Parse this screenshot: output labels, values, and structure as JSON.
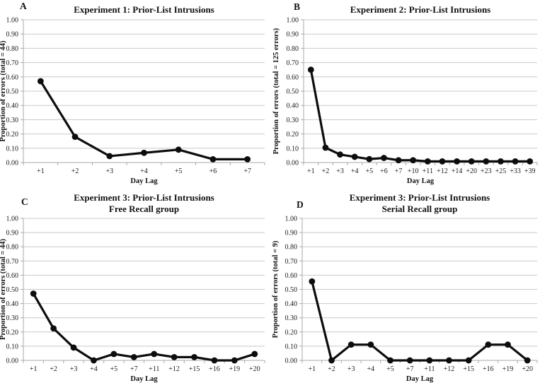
{
  "figure": {
    "background": "#ffffff",
    "series_color": "#0d0d0d",
    "gridline_color": "#c9c9c9",
    "axis_color": "#a9a9a9",
    "text_color": "#1b1b1b"
  },
  "chart_data": [
    {
      "type": "line",
      "panel_label": "A",
      "title": "Experiment 1: Prior-List Intrusions",
      "subtitle": "",
      "xlabel": "Day Lag",
      "ylabel": "Proportion of errors (total = 44)",
      "ylim": [
        0,
        1
      ],
      "yticks": [
        "0.00",
        "0.10",
        "0.20",
        "0.30",
        "0.40",
        "0.50",
        "0.60",
        "0.70",
        "0.80",
        "0.90",
        "1.00"
      ],
      "grid": true,
      "legend": "none",
      "marker": "filled-circle",
      "categories": [
        "+1",
        "+2",
        "+3",
        "+4",
        "+5",
        "+6",
        "+7"
      ],
      "values": [
        0.57,
        0.18,
        0.045,
        0.068,
        0.09,
        0.023,
        0.023
      ]
    },
    {
      "type": "line",
      "panel_label": "B",
      "title": "Experiment 2: Prior-List Intrusions",
      "subtitle": "",
      "xlabel": "Day Lag",
      "ylabel": "Proportion of errors (total = 125 errors)",
      "ylim": [
        0,
        1
      ],
      "yticks": [
        "0.00",
        "0.10",
        "0.20",
        "0.30",
        "0.40",
        "0.50",
        "0.60",
        "0.70",
        "0.80",
        "0.90",
        "1.00"
      ],
      "grid": true,
      "legend": "none",
      "marker": "filled-circle",
      "categories": [
        "+1",
        "+2",
        "+3",
        "+4",
        "+5",
        "+6",
        "+7",
        "+10",
        "+11",
        "+12",
        "+14",
        "+20",
        "+23",
        "+25",
        "+33",
        "+39"
      ],
      "values": [
        0.65,
        0.104,
        0.056,
        0.04,
        0.024,
        0.032,
        0.016,
        0.016,
        0.008,
        0.008,
        0.008,
        0.008,
        0.008,
        0.008,
        0.008,
        0.008
      ]
    },
    {
      "type": "line",
      "panel_label": "C",
      "title": "Experiment 3: Prior-List Intrusions",
      "subtitle": "Free Recall group",
      "xlabel": "Day Lag",
      "ylabel": "Proportion of errors (total = 44)",
      "ylim": [
        0,
        1
      ],
      "yticks": [
        "0.00",
        "0.10",
        "0.20",
        "0.30",
        "0.40",
        "0.50",
        "0.60",
        "0.70",
        "0.80",
        "0.90",
        "1.00"
      ],
      "grid": true,
      "legend": "none",
      "marker": "filled-circle",
      "categories": [
        "+1",
        "+2",
        "+3",
        "+4",
        "+5",
        "+7",
        "+11",
        "+12",
        "+15",
        "+16",
        "+19",
        "+20"
      ],
      "values": [
        0.47,
        0.225,
        0.09,
        0.0,
        0.045,
        0.023,
        0.045,
        0.023,
        0.023,
        0.0,
        0.0,
        0.045
      ]
    },
    {
      "type": "line",
      "panel_label": "D",
      "title": "Experiment 3: Prior-List Intrusions",
      "subtitle": "Serial Recall group",
      "xlabel": "Day Lag",
      "ylabel": "Proportion of errors (total = 9)",
      "ylim": [
        0,
        1
      ],
      "yticks": [
        "0.00",
        "0.10",
        "0.20",
        "0.30",
        "0.40",
        "0.50",
        "0.60",
        "0.70",
        "0.80",
        "0.90",
        "1.00"
      ],
      "grid": true,
      "legend": "none",
      "marker": "filled-circle",
      "categories": [
        "+1",
        "+2",
        "+3",
        "+4",
        "+5",
        "+7",
        "+11",
        "+12",
        "+15",
        "+16",
        "+19",
        "+20"
      ],
      "values": [
        0.556,
        0.0,
        0.111,
        0.111,
        0.0,
        0.0,
        0.0,
        0.0,
        0.0,
        0.111,
        0.111,
        0.0
      ]
    }
  ]
}
